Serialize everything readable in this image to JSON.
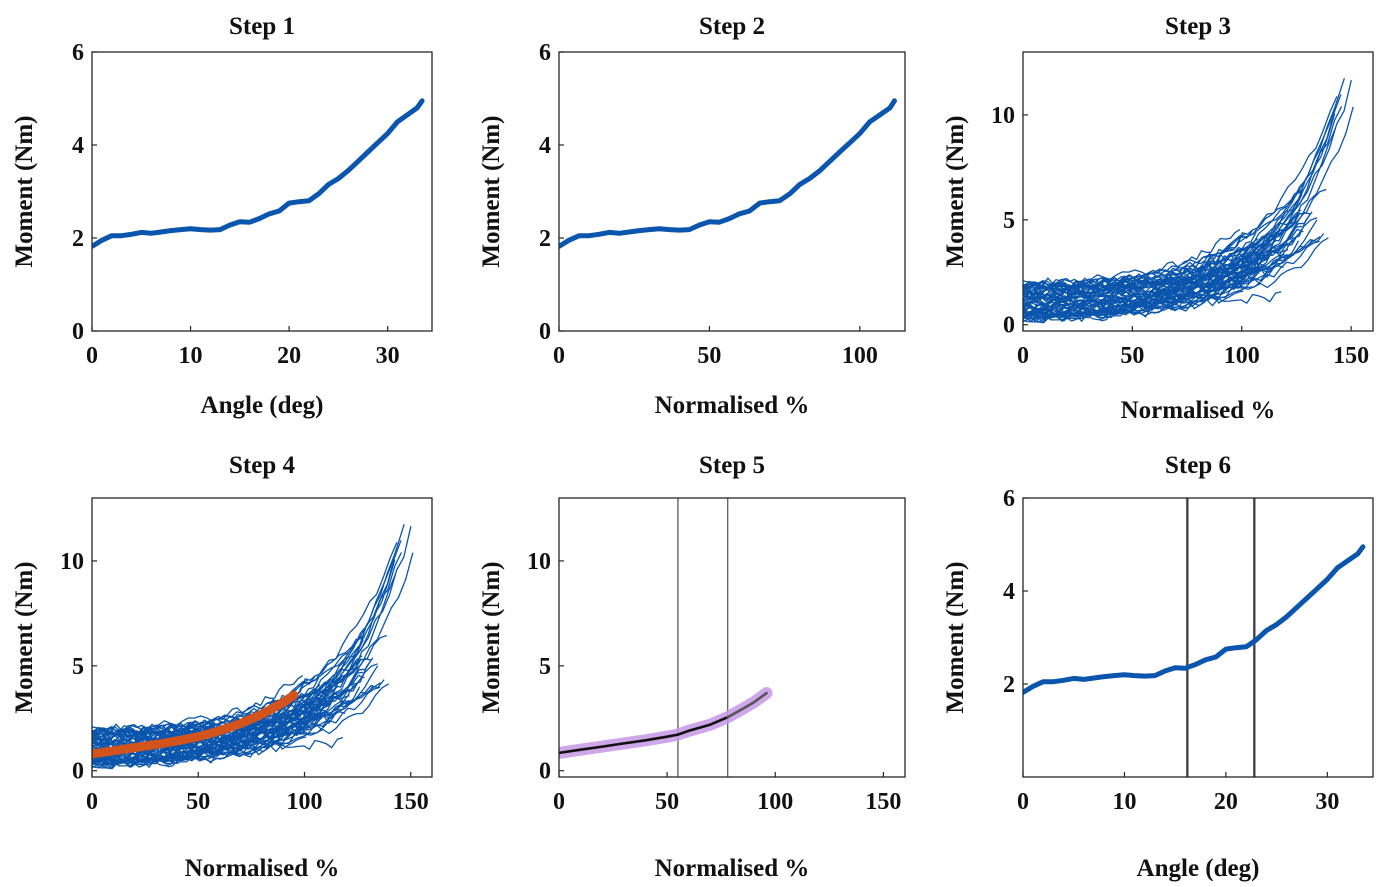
{
  "colors": {
    "blue": "#0a55ad",
    "orange": "#d2531b",
    "black": "#111111",
    "purple_band": "#c596e6",
    "gray_line": "#555555"
  },
  "chart_data": [
    {
      "id": "step1",
      "type": "line",
      "title": "Step 1",
      "xlabel": "Angle (deg)",
      "ylabel": "Moment (Nm)",
      "xlim": [
        0,
        34.5
      ],
      "ylim": [
        0,
        6
      ],
      "xticks": [
        0,
        10,
        20,
        30
      ],
      "yticks": [
        0,
        2,
        4,
        6
      ],
      "grid": false,
      "series": [
        {
          "color": "#0a55ad",
          "x": [
            0,
            1,
            2,
            3,
            4,
            5,
            6,
            7,
            8,
            9,
            10,
            11,
            12,
            13,
            14,
            15,
            16,
            17,
            18,
            19,
            20,
            21,
            22,
            23,
            24,
            25,
            26,
            27,
            28,
            29,
            30,
            31,
            32,
            33,
            33.5
          ],
          "y": [
            1.82,
            1.95,
            2.05,
            2.05,
            2.08,
            2.12,
            2.1,
            2.13,
            2.16,
            2.18,
            2.2,
            2.18,
            2.17,
            2.18,
            2.28,
            2.35,
            2.34,
            2.42,
            2.52,
            2.58,
            2.75,
            2.78,
            2.8,
            2.95,
            3.15,
            3.28,
            3.45,
            3.65,
            3.85,
            4.05,
            4.25,
            4.5,
            4.65,
            4.8,
            4.95
          ]
        }
      ]
    },
    {
      "id": "step2",
      "type": "line",
      "title": "Step 2",
      "xlabel": "Normalised %",
      "ylabel": "Moment (Nm)",
      "xlim": [
        0,
        115
      ],
      "ylim": [
        0,
        6
      ],
      "xticks": [
        0,
        50,
        100
      ],
      "yticks": [
        0,
        2,
        4,
        6
      ],
      "grid": false,
      "series": [
        {
          "color": "#0a55ad",
          "x": [
            0,
            3.3,
            6.7,
            10,
            13.3,
            16.7,
            20,
            23.3,
            26.7,
            30,
            33.3,
            36.7,
            40,
            43.3,
            46.7,
            50,
            53.3,
            56.7,
            60,
            63.3,
            66.7,
            70,
            73.3,
            76.7,
            80,
            83.3,
            86.7,
            90,
            93.3,
            96.7,
            100,
            103.3,
            106.7,
            110,
            111.5
          ],
          "y": [
            1.82,
            1.95,
            2.05,
            2.05,
            2.08,
            2.12,
            2.1,
            2.13,
            2.16,
            2.18,
            2.2,
            2.18,
            2.17,
            2.18,
            2.28,
            2.35,
            2.34,
            2.42,
            2.52,
            2.58,
            2.75,
            2.78,
            2.8,
            2.95,
            3.15,
            3.28,
            3.45,
            3.65,
            3.85,
            4.05,
            4.25,
            4.5,
            4.65,
            4.8,
            4.95
          ]
        }
      ]
    },
    {
      "id": "step3",
      "type": "line",
      "title": "Step 3",
      "xlabel": "Normalised %",
      "ylabel": "Moment (Nm)",
      "xlim": [
        0,
        160
      ],
      "ylim": [
        -0.3,
        13
      ],
      "xticks": [
        0,
        50,
        100,
        150
      ],
      "yticks": [
        0,
        5,
        10
      ],
      "grid": false,
      "trials": {
        "count": 60,
        "color": "#0a55ad",
        "start_range": [
          0.2,
          2.0
        ],
        "end_x_range": [
          95,
          152
        ],
        "max_end_value": 12.4,
        "min_end_value": 1.2
      }
    },
    {
      "id": "step4",
      "type": "line",
      "title": "Step 4",
      "xlabel": "Normalised %",
      "ylabel": "Moment (Nm)",
      "xlim": [
        0,
        160
      ],
      "ylim": [
        -0.3,
        13
      ],
      "xticks": [
        0,
        50,
        100,
        150
      ],
      "yticks": [
        0,
        5,
        10
      ],
      "grid": false,
      "trials": {
        "count": 60,
        "color": "#0a55ad",
        "start_range": [
          0.2,
          2.0
        ],
        "end_x_range": [
          95,
          152
        ],
        "max_end_value": 12.4,
        "min_end_value": 1.2
      },
      "series": [
        {
          "color": "#d2531b",
          "role": "mean",
          "x": [
            0,
            10,
            20,
            30,
            40,
            50,
            60,
            70,
            80,
            90,
            95
          ],
          "y": [
            0.8,
            0.95,
            1.1,
            1.25,
            1.42,
            1.62,
            1.9,
            2.25,
            2.7,
            3.25,
            3.6
          ]
        }
      ]
    },
    {
      "id": "step5",
      "type": "line",
      "title": "Step 5",
      "xlabel": "Normalised %",
      "ylabel": "Moment (Nm)",
      "xlim": [
        0,
        160
      ],
      "ylim": [
        -0.3,
        13
      ],
      "xticks": [
        0,
        50,
        100,
        150
      ],
      "yticks": [
        0,
        5,
        10
      ],
      "grid": false,
      "vlines": [
        55,
        78
      ],
      "band": {
        "color": "#c596e6",
        "x": [
          0,
          10,
          20,
          30,
          40,
          50,
          55,
          60,
          70,
          78,
          85,
          90,
          96
        ],
        "y": [
          0.85,
          1.0,
          1.15,
          1.3,
          1.45,
          1.62,
          1.72,
          1.9,
          2.2,
          2.55,
          2.95,
          3.25,
          3.7
        ]
      },
      "series": [
        {
          "color": "#111111",
          "role": "fit",
          "x": [
            0,
            10,
            20,
            30,
            40,
            50,
            55,
            60,
            70,
            78
          ],
          "y": [
            0.85,
            1.0,
            1.15,
            1.3,
            1.45,
            1.62,
            1.72,
            1.9,
            2.2,
            2.55
          ]
        },
        {
          "color": "#555555",
          "role": "fit-tail",
          "x": [
            78,
            85,
            90,
            96
          ],
          "y": [
            2.55,
            2.95,
            3.25,
            3.7
          ]
        }
      ]
    },
    {
      "id": "step6",
      "type": "line",
      "title": "Step 6",
      "xlabel": "Angle (deg)",
      "ylabel": "Moment (Nm)",
      "xlim": [
        0,
        34.5
      ],
      "ylim": [
        0,
        6
      ],
      "xticks": [
        0,
        10,
        20,
        30
      ],
      "yticks": [
        2,
        4,
        6
      ],
      "grid": false,
      "vlines": [
        16.2,
        22.8
      ],
      "series": [
        {
          "color": "#0a55ad",
          "x": [
            0,
            1,
            2,
            3,
            4,
            5,
            6,
            7,
            8,
            9,
            10,
            11,
            12,
            13,
            14,
            15,
            16,
            17,
            18,
            19,
            20,
            21,
            22,
            23,
            24,
            25,
            26,
            27,
            28,
            29,
            30,
            31,
            32,
            33,
            33.5
          ],
          "y": [
            1.82,
            1.95,
            2.05,
            2.05,
            2.08,
            2.12,
            2.1,
            2.13,
            2.16,
            2.18,
            2.2,
            2.18,
            2.17,
            2.18,
            2.28,
            2.35,
            2.34,
            2.42,
            2.52,
            2.58,
            2.75,
            2.78,
            2.8,
            2.95,
            3.15,
            3.28,
            3.45,
            3.65,
            3.85,
            4.05,
            4.25,
            4.5,
            4.65,
            4.8,
            4.95
          ]
        }
      ]
    }
  ]
}
